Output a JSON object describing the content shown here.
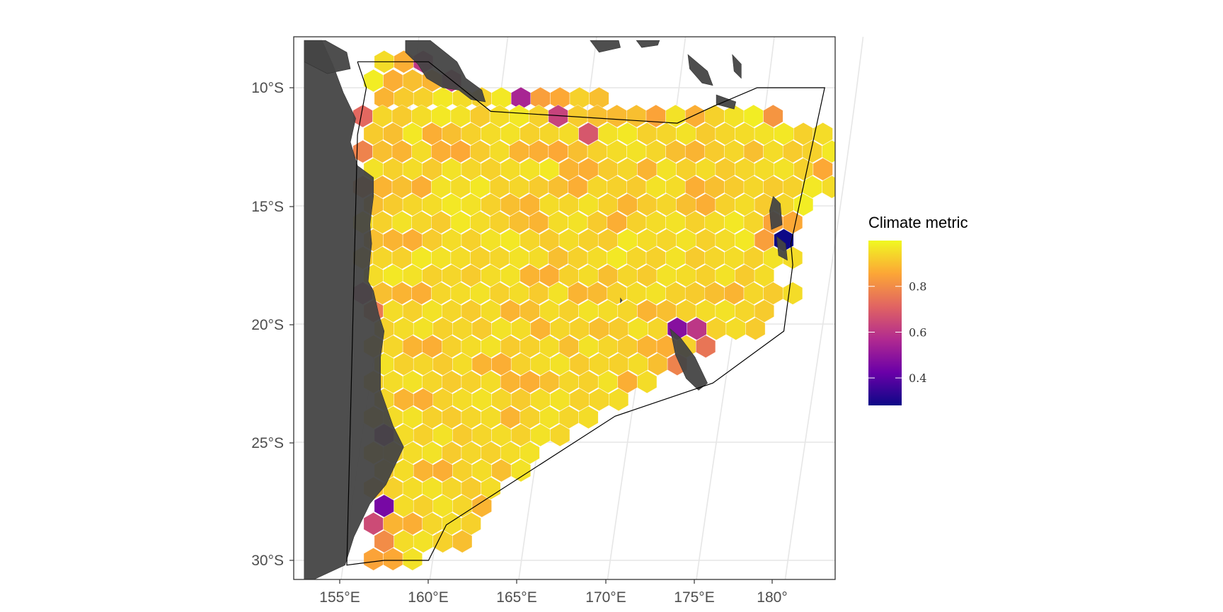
{
  "chart_data": {
    "type": "heatmap",
    "subtype": "hexbin-map",
    "title": "",
    "xlabel": "",
    "ylabel": "",
    "x_ticks": [
      "155°E",
      "160°E",
      "165°E",
      "170°E",
      "175°E",
      "180°"
    ],
    "y_ticks": [
      "10°S",
      "15°S",
      "20°S",
      "25°S",
      "30°S"
    ],
    "xlim_deg": [
      153,
      183.5
    ],
    "ylim_deg": [
      -31,
      -8
    ],
    "grid": true,
    "legend": {
      "title": "Climate metric",
      "placement": "right",
      "tick_labels": [
        "0.8",
        "0.6",
        "0.4"
      ],
      "tick_values": [
        0.8,
        0.6,
        0.4
      ],
      "range": [
        0.28,
        1.0
      ],
      "colormap": "plasma",
      "colors": [
        "#0d0887",
        "#6a00a8",
        "#b12a90",
        "#e16462",
        "#fca636",
        "#f0f921"
      ]
    },
    "colors": {
      "land": "#444444",
      "panel_border": "#333333",
      "grid": "#e6e6e6",
      "boundary": "#000000",
      "hex_stroke": "#ffffff"
    },
    "boundary_polygon": [
      [
        156.0,
        -8.9
      ],
      [
        160.0,
        -8.9
      ],
      [
        163.5,
        -11.0
      ],
      [
        174.0,
        -11.5
      ],
      [
        176.0,
        -10.8
      ],
      [
        178.5,
        -10.0
      ],
      [
        182.3,
        -10.0
      ],
      [
        180.4,
        -16.6
      ],
      [
        180.5,
        -17.5
      ],
      [
        180.0,
        -20.3
      ],
      [
        176.0,
        -22.5
      ],
      [
        170.5,
        -23.9
      ],
      [
        161.0,
        -28.5
      ],
      [
        160.0,
        -30.0
      ],
      [
        157.5,
        -30.0
      ],
      [
        155.4,
        -30.2
      ],
      [
        156.0,
        -12.0
      ],
      [
        156.5,
        -10.0
      ],
      [
        156.0,
        -8.9
      ]
    ],
    "hex_grid": {
      "dx_deg": 1.1,
      "rows": [
        [
          -8.9,
          157.5,
          [
            0.95,
            0.87,
            0.6
          ]
        ],
        [
          -9.7,
          156.9,
          [
            0.98,
            0.87,
            0.9,
            0.88,
            0.62
          ]
        ],
        [
          -10.45,
          157.5,
          [
            0.88,
            0.92,
            0.93,
            0.97,
            0.95,
            0.93,
            0.97,
            0.55,
            0.84,
            0.86,
            0.93,
            0.9
          ]
        ],
        [
          -11.2,
          156.3,
          [
            0.72,
            0.94,
            0.92,
            0.95,
            0.97,
            0.96,
            0.92,
            0.95,
            0.97,
            0.93,
            0.63,
            0.92,
            0.9,
            0.89,
            0.9,
            0.85,
            0.96,
            0.87,
            0.93,
            0.96,
            0.98,
            0.82
          ]
        ],
        [
          -11.95,
          156.9,
          [
            0.92,
            0.9,
            0.97,
            0.87,
            0.9,
            0.93,
            0.95,
            0.96,
            0.93,
            0.94,
            0.95,
            0.68,
            0.96,
            0.97,
            0.93,
            0.94,
            0.96,
            0.92,
            0.94,
            0.95,
            0.96,
            0.97,
            0.93,
            0.95
          ]
        ],
        [
          -12.7,
          156.3,
          [
            0.78,
            0.9,
            0.88,
            0.95,
            0.87,
            0.86,
            0.92,
            0.95,
            0.88,
            0.87,
            0.86,
            0.9,
            0.93,
            0.95,
            0.96,
            0.94,
            0.9,
            0.88,
            0.92,
            0.94,
            0.9,
            0.95,
            0.92,
            0.93,
            0.97,
            0.94
          ]
        ],
        [
          -13.45,
          156.9,
          [
            0.96,
            0.93,
            0.95,
            0.92,
            0.96,
            0.94,
            0.93,
            0.95,
            0.96,
            0.97,
            0.88,
            0.87,
            0.92,
            0.94,
            0.88,
            0.96,
            0.93,
            0.95,
            0.92,
            0.94,
            0.95,
            0.96,
            0.93,
            0.86
          ]
        ],
        [
          -14.2,
          156.3,
          [
            0.8,
            0.88,
            0.9,
            0.87,
            0.96,
            0.95,
            0.97,
            0.93,
            0.94,
            0.92,
            0.9,
            0.87,
            0.94,
            0.93,
            0.92,
            0.96,
            0.95,
            0.87,
            0.9,
            0.92,
            0.94,
            0.92,
            0.93,
            0.97,
            0.95
          ]
        ],
        [
          -14.95,
          156.9,
          [
            0.9,
            0.92,
            0.94,
            0.95,
            0.97,
            0.96,
            0.93,
            0.9,
            0.88,
            0.95,
            0.94,
            0.96,
            0.93,
            0.88,
            0.92,
            0.94,
            0.9,
            0.87,
            0.93,
            0.95,
            0.92,
            0.94,
            0.98
          ]
        ],
        [
          -15.7,
          156.3,
          [
            0.95,
            0.93,
            0.96,
            0.94,
            0.92,
            0.97,
            0.95,
            0.93,
            0.9,
            0.88,
            0.95,
            0.96,
            0.92,
            0.87,
            0.93,
            0.95,
            0.96,
            0.93,
            0.95,
            0.97,
            0.94,
            0.85,
            0.86
          ]
        ],
        [
          -16.45,
          156.9,
          [
            0.9,
            0.88,
            0.87,
            0.92,
            0.95,
            0.93,
            0.96,
            0.97,
            0.94,
            0.92,
            0.95,
            0.93,
            0.92,
            0.97,
            0.95,
            0.94,
            0.96,
            0.93,
            0.95,
            0.97,
            0.84,
            0.28
          ]
        ],
        [
          -17.2,
          156.3,
          [
            0.92,
            0.94,
            0.93,
            0.97,
            0.96,
            0.95,
            0.93,
            0.94,
            0.96,
            0.95,
            0.9,
            0.93,
            0.95,
            0.97,
            0.94,
            0.93,
            0.96,
            0.92,
            0.94,
            0.95,
            0.93,
            0.96,
            0.95
          ]
        ],
        [
          -17.95,
          156.9,
          [
            0.95,
            0.97,
            0.96,
            0.93,
            0.94,
            0.92,
            0.95,
            0.96,
            0.88,
            0.87,
            0.93,
            0.95,
            0.9,
            0.94,
            0.92,
            0.96,
            0.95,
            0.93,
            0.96,
            0.92,
            0.95
          ]
        ],
        [
          -18.7,
          156.3,
          [
            0.6,
            0.9,
            0.88,
            0.87,
            0.94,
            0.95,
            0.96,
            0.93,
            0.95,
            0.92,
            0.96,
            0.88,
            0.89,
            0.93,
            0.95,
            0.96,
            0.93,
            0.92,
            0.9,
            0.88,
            0.94,
            0.92,
            0.95
          ]
        ],
        [
          -19.45,
          156.9,
          [
            0.76,
            0.95,
            0.93,
            0.96,
            0.94,
            0.92,
            0.95,
            0.88,
            0.9,
            0.95,
            0.93,
            0.96,
            0.95,
            0.94,
            0.88,
            0.9,
            0.93,
            0.95,
            0.96,
            0.94,
            0.92
          ]
        ],
        [
          -20.2,
          157.5,
          [
            0.93,
            0.95,
            0.96,
            0.93,
            0.94,
            0.92,
            0.96,
            0.95,
            0.88,
            0.94,
            0.93,
            0.9,
            0.92,
            0.96,
            0.94,
            0.48,
            0.6,
            0.93,
            0.95,
            0.92
          ]
        ],
        [
          -20.95,
          156.9,
          [
            0.92,
            0.94,
            0.88,
            0.87,
            0.93,
            0.95,
            0.96,
            0.92,
            0.93,
            0.95,
            0.9,
            0.96,
            0.94,
            0.92,
            0.88,
            0.87,
            0.93,
            0.75
          ]
        ],
        [
          -21.7,
          157.5,
          [
            0.96,
            0.93,
            0.94,
            0.92,
            0.95,
            0.88,
            0.87,
            0.93,
            0.95,
            0.96,
            0.92,
            0.94,
            0.93,
            0.95,
            0.9,
            0.78
          ]
        ],
        [
          -22.45,
          156.9,
          [
            0.93,
            0.95,
            0.96,
            0.94,
            0.92,
            0.93,
            0.95,
            0.88,
            0.87,
            0.9,
            0.94,
            0.93,
            0.96,
            0.87,
            0.95
          ]
        ],
        [
          -23.2,
          157.5,
          [
            0.94,
            0.88,
            0.87,
            0.93,
            0.95,
            0.96,
            0.94,
            0.92,
            0.95,
            0.96,
            0.93,
            0.94,
            0.95
          ]
        ],
        [
          -23.95,
          156.9,
          [
            0.93,
            0.95,
            0.96,
            0.93,
            0.92,
            0.94,
            0.95,
            0.88,
            0.93,
            0.96,
            0.94,
            0.95
          ]
        ],
        [
          -24.7,
          157.5,
          [
            0.5,
            0.95,
            0.93,
            0.96,
            0.92,
            0.94,
            0.95,
            0.93,
            0.96,
            0.94
          ]
        ],
        [
          -25.45,
          156.9,
          [
            0.94,
            0.93,
            0.95,
            0.96,
            0.92,
            0.94,
            0.93,
            0.95,
            0.96
          ]
        ],
        [
          -26.2,
          157.5,
          [
            0.92,
            0.95,
            0.88,
            0.87,
            0.93,
            0.95,
            0.9,
            0.96
          ]
        ],
        [
          -26.95,
          156.9,
          [
            0.9,
            0.93,
            0.95,
            0.96,
            0.94,
            0.92,
            0.95
          ]
        ],
        [
          -27.7,
          157.5,
          [
            0.45,
            0.95,
            0.93,
            0.96,
            0.94,
            0.88
          ]
        ],
        [
          -28.45,
          156.9,
          [
            0.65,
            0.88,
            0.87,
            0.94,
            0.95,
            0.93
          ]
        ],
        [
          -29.2,
          157.5,
          [
            0.8,
            0.95,
            0.96,
            0.93,
            0.9
          ]
        ],
        [
          -29.95,
          156.9,
          [
            0.85,
            0.86,
            0.96
          ]
        ]
      ]
    },
    "land_masses": [
      {
        "name": "australia",
        "points": [
          [
            153.0,
            -8.0
          ],
          [
            153.0,
            -31.0
          ],
          [
            155.3,
            -30.2
          ],
          [
            155.8,
            -29.0
          ],
          [
            156.7,
            -27.6
          ],
          [
            157.6,
            -26.8
          ],
          [
            158.6,
            -25.2
          ],
          [
            158.0,
            -24.3
          ],
          [
            157.3,
            -22.8
          ],
          [
            157.3,
            -21.4
          ],
          [
            157.5,
            -20.3
          ],
          [
            157.2,
            -19.6
          ],
          [
            156.9,
            -18.6
          ],
          [
            156.6,
            -18.2
          ],
          [
            156.7,
            -17.3
          ],
          [
            156.8,
            -16.6
          ],
          [
            156.7,
            -15.8
          ],
          [
            156.9,
            -14.6
          ],
          [
            156.9,
            -13.8
          ],
          [
            156.0,
            -13.3
          ],
          [
            155.6,
            -12.3
          ],
          [
            155.9,
            -11.3
          ],
          [
            155.2,
            -10.2
          ],
          [
            154.6,
            -9.0
          ],
          [
            154.0,
            -8.0
          ]
        ]
      },
      {
        "name": "new-guinea-west",
        "points": [
          [
            153.0,
            -8.0
          ],
          [
            154.2,
            -8.0
          ],
          [
            155.4,
            -8.5
          ],
          [
            155.6,
            -9.2
          ],
          [
            154.3,
            -9.4
          ],
          [
            153.0,
            -8.9
          ]
        ]
      },
      {
        "name": "new-guinea-east",
        "points": [
          [
            158.7,
            -8.0
          ],
          [
            160.1,
            -8.0
          ],
          [
            161.6,
            -8.9
          ],
          [
            162.1,
            -9.6
          ],
          [
            163.0,
            -10.1
          ],
          [
            163.2,
            -10.6
          ],
          [
            162.4,
            -10.5
          ],
          [
            161.7,
            -10.1
          ],
          [
            160.8,
            -10.0
          ],
          [
            159.9,
            -9.6
          ],
          [
            159.4,
            -9.0
          ],
          [
            158.7,
            -8.5
          ]
        ]
      },
      {
        "name": "new-caledonia",
        "points": [
          [
            173.6,
            -20.2
          ],
          [
            174.2,
            -20.6
          ],
          [
            175.0,
            -21.4
          ],
          [
            175.7,
            -22.5
          ],
          [
            175.2,
            -22.8
          ],
          [
            174.5,
            -22.3
          ],
          [
            173.9,
            -21.3
          ]
        ]
      },
      {
        "name": "vanuatu-espiritu-santo",
        "points": [
          [
            179.4,
            -14.6
          ],
          [
            179.8,
            -14.9
          ],
          [
            179.9,
            -15.8
          ],
          [
            179.3,
            -16.0
          ],
          [
            179.2,
            -15.2
          ]
        ]
      },
      {
        "name": "vanuatu-malekula",
        "points": [
          [
            179.6,
            -16.3
          ],
          [
            180.1,
            -16.6
          ],
          [
            180.2,
            -17.3
          ],
          [
            179.7,
            -17.1
          ]
        ]
      },
      {
        "name": "solomons-bougainville",
        "points": [
          [
            174.6,
            -8.6
          ],
          [
            175.7,
            -9.3
          ],
          [
            176.0,
            -9.9
          ],
          [
            175.4,
            -9.8
          ],
          [
            174.7,
            -9.2
          ]
        ]
      },
      {
        "name": "solomons-guadalcanal",
        "points": [
          [
            176.2,
            -10.3
          ],
          [
            177.3,
            -10.6
          ],
          [
            177.2,
            -10.9
          ],
          [
            176.2,
            -10.7
          ]
        ]
      },
      {
        "name": "solomons-malaita",
        "points": [
          [
            177.1,
            -8.6
          ],
          [
            177.6,
            -9.0
          ],
          [
            177.6,
            -9.6
          ],
          [
            177.2,
            -9.3
          ]
        ]
      },
      {
        "name": "new-britain-east",
        "points": [
          [
            169.1,
            -8.0
          ],
          [
            170.7,
            -8.0
          ],
          [
            170.8,
            -8.3
          ],
          [
            169.6,
            -8.5
          ]
        ]
      },
      {
        "name": "new-ireland",
        "points": [
          [
            171.7,
            -8.0
          ],
          [
            173.0,
            -8.0
          ],
          [
            172.9,
            -8.2
          ],
          [
            172.0,
            -8.3
          ]
        ]
      },
      {
        "name": "lord-howe-island",
        "points": [
          [
            170.8,
            -18.9
          ],
          [
            170.9,
            -19.0
          ],
          [
            170.8,
            -19.1
          ]
        ]
      }
    ]
  }
}
